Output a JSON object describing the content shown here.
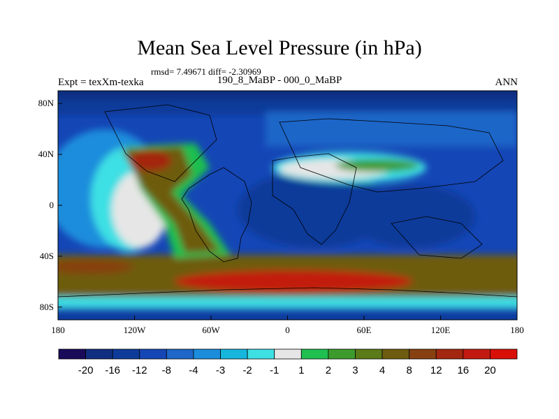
{
  "title": "Mean Sea Level Pressure (in hPa)",
  "stats": "rmsd= 7.49671 diff= -2.30969",
  "left_subtitle": "Expt = texXm-texka",
  "center_subtitle": "190_8_MaBP - 000_0_MaBP",
  "right_subtitle": "ANN",
  "chart_data": {
    "type": "heatmap",
    "projection": "cylindrical-equidistant",
    "variable": "Mean Sea Level Pressure difference",
    "units": "hPa",
    "x_ticks": [
      "180",
      "120W",
      "60W",
      "0",
      "60E",
      "120E",
      "180"
    ],
    "y_ticks": [
      "80N",
      "40N",
      "0",
      "40S",
      "80S"
    ],
    "x_tick_values": [
      -180,
      -120,
      -60,
      0,
      60,
      120,
      180
    ],
    "y_tick_values": [
      80,
      40,
      0,
      -40,
      -80
    ],
    "lon_range": [
      -180,
      180
    ],
    "lat_range": [
      -90,
      90
    ],
    "colorbar": {
      "labels": [
        "-20",
        "-16",
        "-12",
        "-8",
        "-4",
        "-3",
        "-2",
        "-1",
        "1",
        "2",
        "3",
        "4",
        "8",
        "12",
        "16",
        "20"
      ],
      "colors": [
        "#1a0a5a",
        "#102f80",
        "#0e3b9a",
        "#1546b6",
        "#1e66c8",
        "#1b8ddc",
        "#17b6dc",
        "#3ee0e4",
        "#e6e6e6",
        "#1fbf50",
        "#3d9b2e",
        "#5b7a18",
        "#6e5c10",
        "#874010",
        "#a32610",
        "#c21a10",
        "#d81008"
      ]
    },
    "regions_approx": [
      {
        "desc": "strong negative over north polar band",
        "lat": [
          70,
          90
        ],
        "lon": [
          -180,
          180
        ],
        "value_range": [
          -20,
          -12
        ]
      },
      {
        "desc": "broad negative over southern-hemisphere subtropics and Africa",
        "lat": [
          -30,
          30
        ],
        "lon": [
          -50,
          180
        ],
        "value_range": [
          -16,
          -8
        ]
      },
      {
        "desc": "positive belt in southern mid-latitudes",
        "lat": [
          -65,
          -35
        ],
        "lon": [
          -180,
          180
        ],
        "value_range": [
          8,
          20
        ]
      },
      {
        "desc": "positive tongue over western Americas and Pacific",
        "lat": [
          -40,
          45
        ],
        "lon": [
          -140,
          -45
        ],
        "value_range": [
          3,
          16
        ]
      },
      {
        "desc": "near-zero over eastern Pacific",
        "lat": [
          -20,
          40
        ],
        "lon": [
          -155,
          -115
        ],
        "value_range": [
          -1,
          1
        ]
      },
      {
        "desc": "near-zero and positive band over northern Eurasia",
        "lat": [
          25,
          45
        ],
        "lon": [
          -5,
          95
        ],
        "value_range": [
          -1,
          4
        ]
      },
      {
        "desc": "negative near Antarctica",
        "lat": [
          -90,
          -70
        ],
        "lon": [
          -180,
          180
        ],
        "value_range": [
          -8,
          -2
        ]
      }
    ]
  }
}
